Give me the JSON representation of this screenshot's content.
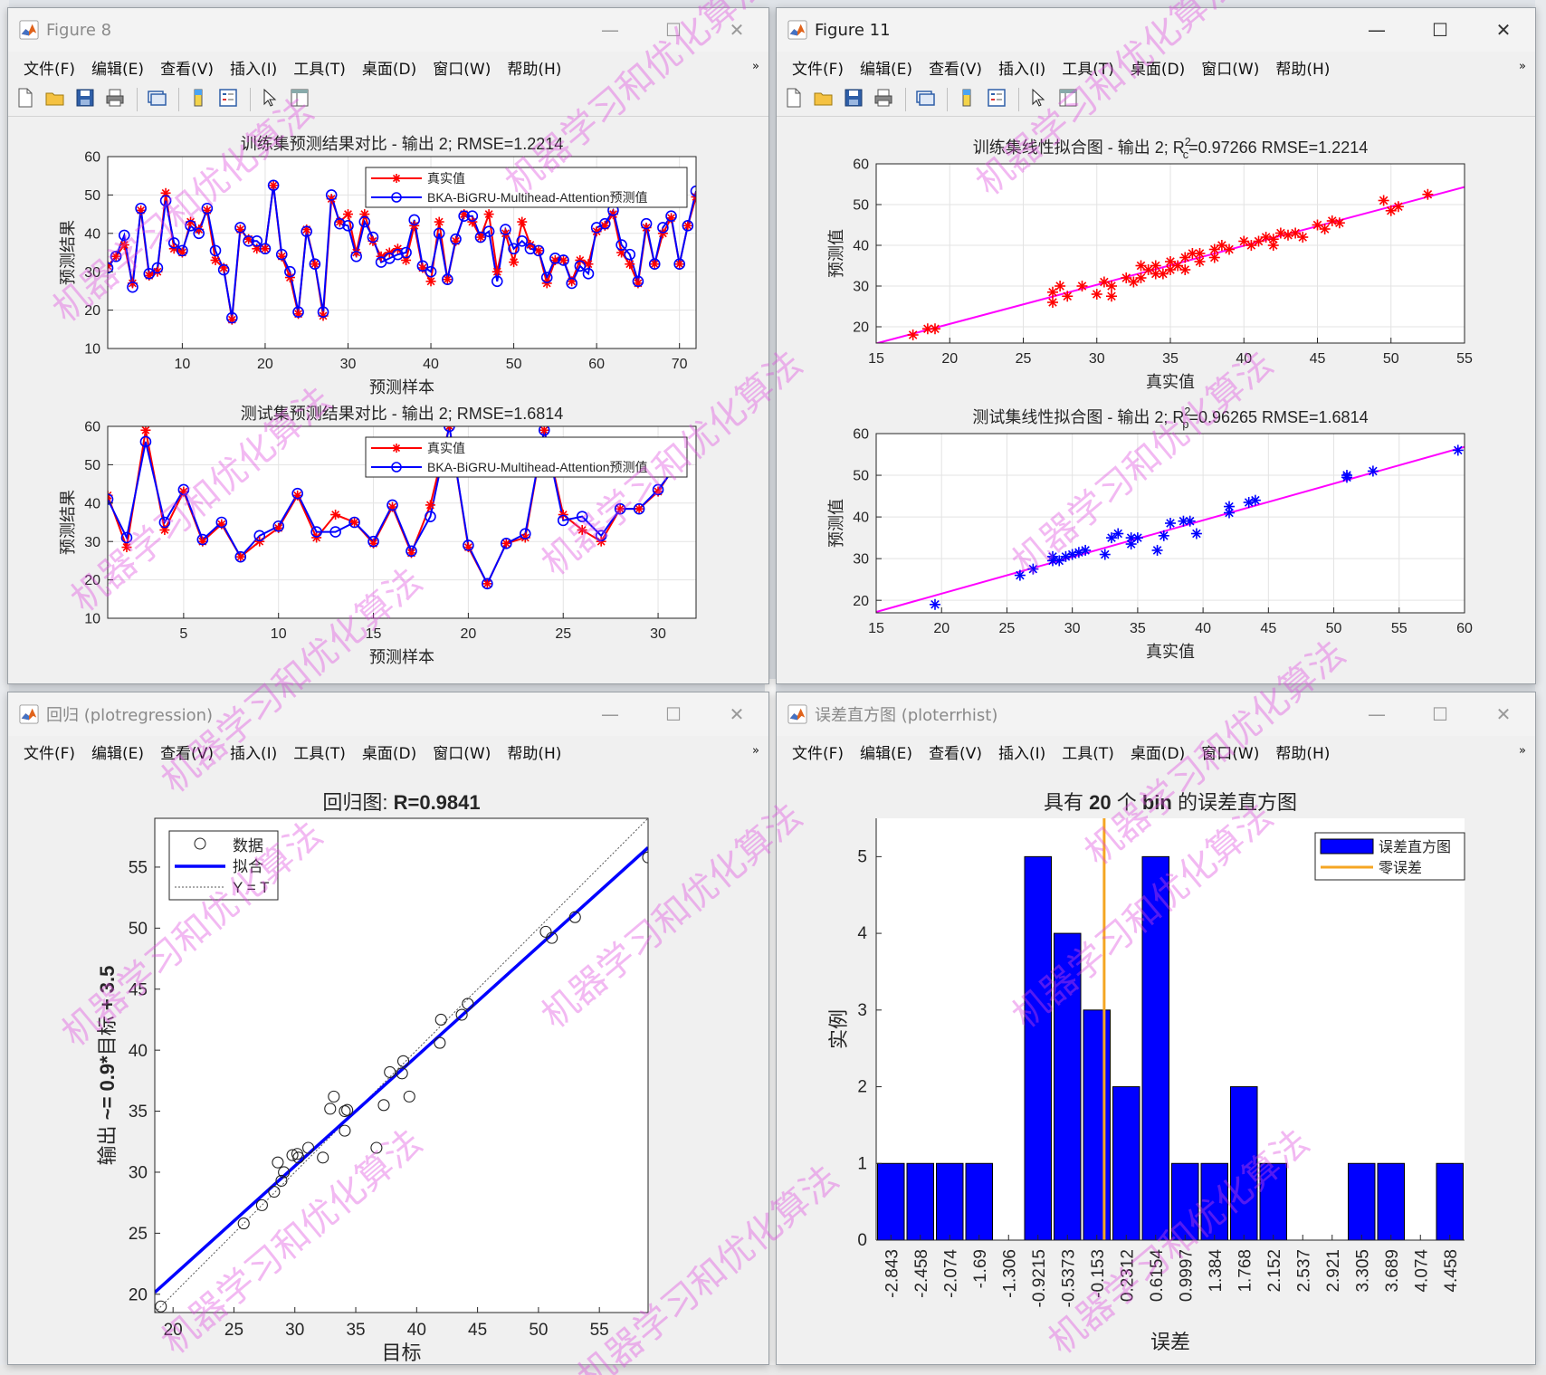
{
  "menus": [
    "文件(F)",
    "编辑(E)",
    "查看(V)",
    "插入(I)",
    "工具(T)",
    "桌面(D)",
    "窗口(W)",
    "帮助(H)"
  ],
  "menu_overflow_icon": "chevron-double-right-icon",
  "toolbar_icons": [
    "new-figure-icon",
    "open-file-icon",
    "save-icon",
    "print-icon",
    "link-plot-icon",
    "colorbar-icon",
    "legend-icon",
    "pointer-icon",
    "property-inspector-icon"
  ],
  "window_controls": {
    "minimize": "—",
    "maximize": "☐",
    "close": "✕"
  },
  "windows": [
    {
      "id": "fig8",
      "title": "Figure 8",
      "active": false
    },
    {
      "id": "fig11",
      "title": "Figure 11",
      "active": true
    },
    {
      "id": "reg",
      "title": "回归 (plotregression)",
      "active": false
    },
    {
      "id": "hist",
      "title": "误差直方图 (ploterrhist)",
      "active": false
    }
  ],
  "watermark": "机器学习和优化算法",
  "colors": {
    "true_series": "#ff0000",
    "pred_series": "#0000ff",
    "fit_line": "#ff00ff",
    "bar": "#0000ff",
    "zero_error": "#f5a623"
  },
  "chart_data": [
    {
      "id": "c8a",
      "type": "line",
      "title": "训练集预测结果对比 - 输出 2; RMSE=1.2214",
      "xlabel": "预测样本",
      "ylabel": "预测结果",
      "xlim": [
        1,
        72
      ],
      "ylim": [
        10,
        60
      ],
      "xticks": [
        10,
        20,
        30,
        40,
        50,
        60,
        70
      ],
      "yticks": [
        10,
        20,
        30,
        40,
        50,
        60
      ],
      "grid": true,
      "legend": "top-right",
      "series": [
        {
          "name": "真实值",
          "color": "#ff0000",
          "marker": "star",
          "values": [
            31.5,
            34,
            37,
            27,
            46,
            29,
            30,
            50.5,
            36,
            35,
            43,
            41,
            46,
            33,
            31,
            17.5,
            41,
            38.5,
            36,
            36,
            52.5,
            34,
            28.5,
            19,
            41,
            32,
            18.5,
            49,
            43,
            45,
            35,
            45,
            38,
            34,
            35,
            36,
            33,
            42,
            31,
            27.5,
            43,
            28,
            38,
            45,
            43,
            39,
            45,
            30,
            40,
            32.5,
            43,
            37,
            35.5,
            27,
            33,
            33,
            27.5,
            33,
            32,
            40.5,
            42,
            45,
            35,
            32,
            27,
            41.5,
            32,
            40,
            44,
            32,
            42,
            49.5
          ]
        },
        {
          "name": "BKA-BiGRU-Multihead-Attention预测值",
          "color": "#0000ff",
          "marker": "circle",
          "values": [
            31,
            34,
            39.5,
            26,
            46.5,
            29.5,
            31,
            48.5,
            37.5,
            35.5,
            42,
            40,
            46.5,
            35.5,
            30.5,
            18,
            41.5,
            38,
            38,
            36,
            52.5,
            34.5,
            30,
            19.5,
            40.5,
            32,
            19.5,
            50,
            42.5,
            42,
            34,
            43,
            39,
            32.5,
            33.5,
            34.5,
            35,
            43.5,
            31.5,
            30,
            40,
            28,
            38.5,
            44.5,
            44.5,
            39,
            40.5,
            27.5,
            41,
            36,
            38,
            36,
            35.5,
            28.5,
            33.5,
            33,
            27,
            31.5,
            29.5,
            41.5,
            42.5,
            46,
            37,
            34.5,
            27.5,
            42.5,
            32,
            41.5,
            44.5,
            32,
            42,
            51
          ]
        }
      ]
    },
    {
      "id": "c8b",
      "type": "line",
      "title": "测试集预测结果对比 - 输出 2; RMSE=1.6814",
      "xlabel": "预测样本",
      "ylabel": "预测结果",
      "xlim": [
        1,
        32
      ],
      "ylim": [
        10,
        60
      ],
      "xticks": [
        5,
        10,
        15,
        20,
        25,
        30
      ],
      "yticks": [
        10,
        20,
        30,
        40,
        50,
        60
      ],
      "grid": true,
      "legend": "top-right",
      "series": [
        {
          "name": "真实值",
          "color": "#ff0000",
          "marker": "star",
          "values": [
            42,
            28.5,
            59,
            33,
            43,
            30,
            34.5,
            26,
            30,
            33.5,
            42,
            31,
            37,
            35,
            29.5,
            39,
            27,
            39.5,
            60,
            28.5,
            19,
            29.5,
            31,
            59,
            37,
            33,
            30,
            38.5,
            38.5,
            43,
            50.5
          ]
        },
        {
          "name": "BKA-BiGRU-Multihead-Attention预测值",
          "color": "#0000ff",
          "marker": "circle",
          "values": [
            41,
            31,
            56,
            35,
            43.5,
            30.5,
            35,
            26,
            31.5,
            34,
            42.5,
            32.5,
            32.5,
            35,
            30,
            39.5,
            27.5,
            36.5,
            60,
            29,
            19,
            29.5,
            32,
            59,
            35.5,
            36.5,
            31.5,
            38.5,
            38.5,
            43.5,
            50
          ]
        }
      ]
    },
    {
      "id": "c11a",
      "type": "scatter",
      "title": "训练集线性拟合图 - 输出 2; R²c=0.97266  RMSE=1.2214",
      "title_parts": {
        "pre": "训练集线性拟合图 - 输出 2; R",
        "sup": "2",
        "sub": "c",
        "post": "=0.97266  RMSE=1.2214"
      },
      "xlabel": "真实值",
      "ylabel": "预测值",
      "xlim": [
        15,
        55
      ],
      "ylim": [
        16,
        60
      ],
      "xticks": [
        15,
        20,
        25,
        30,
        35,
        40,
        45,
        50,
        55
      ],
      "yticks": [
        20,
        30,
        40,
        50,
        60
      ],
      "grid": true,
      "marker": "star",
      "color": "#ff0000",
      "fit": {
        "slope": 0.96,
        "intercept": 1.5,
        "color": "#ff00ff"
      },
      "points": [
        [
          17.5,
          18
        ],
        [
          18.5,
          19.5
        ],
        [
          19,
          19.5
        ],
        [
          27,
          26
        ],
        [
          27,
          28.5
        ],
        [
          27.5,
          30
        ],
        [
          28,
          27.5
        ],
        [
          29,
          30
        ],
        [
          30,
          28
        ],
        [
          30.5,
          31
        ],
        [
          31,
          30
        ],
        [
          31,
          27.5
        ],
        [
          32,
          32
        ],
        [
          32.5,
          31
        ],
        [
          33,
          32
        ],
        [
          33,
          35
        ],
        [
          33.5,
          34
        ],
        [
          34,
          33
        ],
        [
          34,
          35
        ],
        [
          34.5,
          33
        ],
        [
          35,
          34
        ],
        [
          35,
          36
        ],
        [
          35.5,
          35
        ],
        [
          36,
          37
        ],
        [
          36,
          34
        ],
        [
          36.5,
          38
        ],
        [
          37,
          36
        ],
        [
          37,
          38
        ],
        [
          38,
          37
        ],
        [
          38,
          39
        ],
        [
          38.5,
          40
        ],
        [
          39,
          39
        ],
        [
          40,
          41
        ],
        [
          40.5,
          40
        ],
        [
          41,
          41
        ],
        [
          41.5,
          42
        ],
        [
          42,
          41.5
        ],
        [
          42,
          40
        ],
        [
          42.5,
          43
        ],
        [
          43,
          42.5
        ],
        [
          43.5,
          43
        ],
        [
          44,
          42
        ],
        [
          45,
          45
        ],
        [
          45.5,
          44
        ],
        [
          46,
          46
        ],
        [
          46.5,
          45.5
        ],
        [
          49.5,
          51
        ],
        [
          50,
          48.5
        ],
        [
          50.5,
          49.5
        ],
        [
          52.5,
          52.5
        ]
      ]
    },
    {
      "id": "c11b",
      "type": "scatter",
      "title": "测试集线性拟合图 - 输出 2; R²p=0.96265  RMSE=1.6814",
      "title_parts": {
        "pre": "测试集线性拟合图 - 输出 2; R",
        "sup": "2",
        "sub": "p",
        "post": "=0.96265  RMSE=1.6814"
      },
      "xlabel": "真实值",
      "ylabel": "预测值",
      "xlim": [
        15,
        60
      ],
      "ylim": [
        17,
        60
      ],
      "xticks": [
        15,
        20,
        25,
        30,
        35,
        40,
        45,
        50,
        55,
        60
      ],
      "yticks": [
        20,
        30,
        40,
        50,
        60
      ],
      "grid": true,
      "marker": "star",
      "color": "#0000ff",
      "fit": {
        "slope": 0.88,
        "intercept": 4,
        "color": "#ff00ff"
      },
      "points": [
        [
          19.5,
          19
        ],
        [
          26,
          26
        ],
        [
          27,
          27.5
        ],
        [
          28.5,
          29.5
        ],
        [
          28.5,
          30.5
        ],
        [
          29,
          29.5
        ],
        [
          29.5,
          30.5
        ],
        [
          30,
          31
        ],
        [
          30.5,
          31.5
        ],
        [
          31,
          32
        ],
        [
          32.5,
          31
        ],
        [
          33,
          35
        ],
        [
          33.5,
          36
        ],
        [
          34.5,
          33.5
        ],
        [
          34.5,
          35
        ],
        [
          35,
          35
        ],
        [
          36.5,
          32
        ],
        [
          37,
          35.5
        ],
        [
          37.5,
          38.5
        ],
        [
          38.5,
          39
        ],
        [
          39,
          39
        ],
        [
          39.5,
          36
        ],
        [
          42,
          41
        ],
        [
          42,
          42.5
        ],
        [
          43.5,
          43.5
        ],
        [
          44,
          44
        ],
        [
          51,
          49.5
        ],
        [
          51,
          50
        ],
        [
          53,
          51
        ],
        [
          59.5,
          56
        ]
      ]
    },
    {
      "id": "creg",
      "type": "scatter",
      "title": "回归图: R=0.9841",
      "title_parts": {
        "pre": "回归图: ",
        "bold": "R=0.9841"
      },
      "xlabel": "目标",
      "ylabel": "输出 ~= 0.9*目标 + 3.5",
      "ylabel_parts": {
        "pre": "输出 ",
        "bold": "~= 0.9*",
        "mid": "目标",
        "post": " + 3.5"
      },
      "xlim": [
        18.5,
        59
      ],
      "ylim": [
        18.5,
        59
      ],
      "xticks": [
        20,
        25,
        30,
        35,
        40,
        45,
        50,
        55
      ],
      "yticks": [
        20,
        25,
        30,
        35,
        40,
        45,
        50,
        55
      ],
      "grid": false,
      "legend": [
        {
          "label": "数据",
          "kind": "circle"
        },
        {
          "label": "拟合",
          "kind": "fit"
        },
        {
          "label": "Y = T",
          "kind": "identity"
        }
      ],
      "fit": {
        "slope": 0.9,
        "intercept": 3.5
      },
      "points": [
        [
          19,
          19
        ],
        [
          25.8,
          25.8
        ],
        [
          27.3,
          27.3
        ],
        [
          28.3,
          28.4
        ],
        [
          28.6,
          30.8
        ],
        [
          28.9,
          29.3
        ],
        [
          29.1,
          30
        ],
        [
          29.8,
          31.4
        ],
        [
          30.2,
          31.5
        ],
        [
          30.3,
          31.2
        ],
        [
          31.1,
          32
        ],
        [
          32.3,
          31.2
        ],
        [
          32.9,
          35.2
        ],
        [
          33.2,
          36.2
        ],
        [
          34.1,
          35
        ],
        [
          34.3,
          35.1
        ],
        [
          34.1,
          33.4
        ],
        [
          36.7,
          32
        ],
        [
          37.3,
          35.5
        ],
        [
          37.8,
          38.2
        ],
        [
          38.8,
          38.1
        ],
        [
          38.9,
          39.1
        ],
        [
          39.4,
          36.2
        ],
        [
          41.9,
          40.6
        ],
        [
          42,
          42.5
        ],
        [
          43.7,
          42.9
        ],
        [
          44.2,
          43.8
        ],
        [
          50.6,
          49.7
        ],
        [
          51.1,
          49.2
        ],
        [
          53,
          50.9
        ],
        [
          59,
          55.8
        ]
      ]
    },
    {
      "id": "chist",
      "type": "bar",
      "title": "具有 20 个 bin 的误差直方图",
      "title_parts": {
        "pre": "具有 ",
        "bold1": "20",
        "mid": " 个 ",
        "bold2": "bin",
        "post": " 的误差直方图"
      },
      "xlabel": "误差",
      "ylabel": "实例",
      "categories": [
        "-2.843",
        "-2.458",
        "-2.074",
        "-1.69",
        "-1.306",
        "-0.9215",
        "-0.5373",
        "-0.153",
        "0.2312",
        "0.6154",
        "0.9997",
        "1.384",
        "1.768",
        "2.152",
        "2.537",
        "2.921",
        "3.305",
        "3.689",
        "4.074",
        "4.458"
      ],
      "values": [
        1,
        1,
        1,
        1,
        0,
        5,
        4,
        3,
        2,
        5,
        1,
        1,
        2,
        1,
        0,
        0,
        1,
        1,
        0,
        1
      ],
      "ylim": [
        0,
        5.5
      ],
      "yticks": [
        0,
        1,
        2,
        3,
        4,
        5
      ],
      "zero_error_position": 7.75,
      "legend": [
        {
          "label": "误差直方图",
          "kind": "bar"
        },
        {
          "label": "零误差",
          "kind": "zero"
        }
      ]
    }
  ]
}
